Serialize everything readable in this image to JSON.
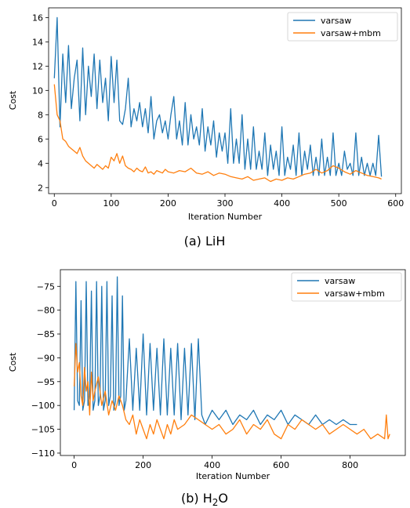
{
  "figure": {
    "captions": [
      {
        "prefix": "(a) LiH",
        "main": "",
        "sub": "",
        "tail": ""
      },
      {
        "prefix": "(b) ",
        "main": "H",
        "sub": "2",
        "tail": "O"
      }
    ],
    "colors": {
      "varsaw": "#1f77b4",
      "varsaw_mbm": "#ff7f0e"
    }
  },
  "chart_data": [
    {
      "type": "line",
      "caption": "(a) LiH",
      "xlabel": "Iteration Number",
      "ylabel": "Cost",
      "xlim": [
        -10,
        610
      ],
      "ylim": [
        1.5,
        16.8
      ],
      "xticks": [
        0,
        100,
        200,
        300,
        400,
        500,
        600
      ],
      "yticks": [
        2,
        4,
        6,
        8,
        10,
        12,
        14,
        16
      ],
      "legend": "top-right",
      "series": [
        {
          "name": "varsaw",
          "color": "#1f77b4",
          "x": [
            0,
            5,
            10,
            15,
            20,
            25,
            30,
            35,
            40,
            45,
            50,
            55,
            60,
            65,
            70,
            75,
            80,
            85,
            90,
            95,
            100,
            105,
            110,
            115,
            120,
            125,
            130,
            135,
            140,
            145,
            150,
            155,
            160,
            165,
            170,
            175,
            180,
            185,
            190,
            195,
            200,
            205,
            210,
            215,
            220,
            225,
            230,
            235,
            240,
            245,
            250,
            255,
            260,
            265,
            270,
            275,
            280,
            285,
            290,
            295,
            300,
            305,
            310,
            315,
            320,
            325,
            330,
            335,
            340,
            345,
            350,
            355,
            360,
            365,
            370,
            375,
            380,
            385,
            390,
            395,
            400,
            405,
            410,
            415,
            420,
            425,
            430,
            435,
            440,
            445,
            450,
            455,
            460,
            465,
            470,
            475,
            480,
            485,
            490,
            495,
            500,
            505,
            510,
            515,
            520,
            525,
            530,
            535,
            540,
            545,
            550,
            555,
            560,
            565,
            570,
            575
          ],
          "y": [
            11.0,
            16.0,
            7.0,
            13.0,
            9.0,
            13.7,
            8.5,
            11.0,
            12.5,
            7.5,
            13.5,
            8.0,
            12.0,
            9.5,
            13.0,
            8.5,
            12.5,
            9.0,
            11.0,
            7.5,
            12.8,
            9.0,
            12.5,
            7.5,
            7.2,
            8.5,
            11.0,
            7.0,
            8.5,
            7.5,
            9.0,
            7.0,
            8.5,
            6.5,
            9.5,
            6.0,
            7.5,
            8.0,
            6.5,
            7.5,
            6.0,
            8.0,
            9.5,
            6.0,
            7.5,
            5.5,
            9.0,
            5.5,
            8.0,
            6.0,
            7.0,
            5.5,
            8.5,
            5.0,
            7.0,
            5.5,
            7.5,
            4.5,
            6.5,
            5.0,
            6.5,
            4.0,
            8.5,
            4.0,
            6.0,
            4.0,
            8.0,
            3.5,
            6.0,
            3.5,
            7.0,
            3.5,
            5.0,
            3.5,
            6.5,
            3.0,
            5.5,
            3.5,
            5.0,
            3.0,
            7.0,
            3.0,
            4.5,
            3.5,
            5.5,
            3.0,
            6.5,
            3.0,
            5.0,
            3.5,
            5.5,
            3.0,
            4.5,
            3.0,
            6.0,
            3.0,
            4.5,
            3.0,
            6.5,
            3.0,
            4.0,
            3.0,
            5.0,
            3.5,
            4.0,
            3.0,
            6.5,
            3.0,
            4.5,
            3.0,
            4.0,
            3.0,
            4.0,
            3.0,
            6.3,
            2.9
          ]
        },
        {
          "name": "varsaw+mbm",
          "color": "#ff7f0e",
          "x": [
            0,
            5,
            10,
            15,
            20,
            25,
            30,
            35,
            40,
            45,
            50,
            55,
            60,
            65,
            70,
            75,
            80,
            85,
            90,
            95,
            100,
            105,
            110,
            115,
            120,
            125,
            130,
            135,
            140,
            145,
            150,
            155,
            160,
            165,
            170,
            175,
            180,
            185,
            190,
            195,
            200,
            210,
            220,
            230,
            240,
            250,
            260,
            270,
            280,
            290,
            300,
            310,
            320,
            330,
            340,
            350,
            360,
            370,
            380,
            390,
            400,
            410,
            420,
            430,
            440,
            450,
            460,
            470,
            480,
            490,
            500,
            510,
            520,
            530,
            540,
            550,
            560,
            570,
            575
          ],
          "y": [
            10.5,
            8.0,
            7.5,
            6.0,
            5.8,
            5.4,
            5.2,
            5.0,
            4.8,
            5.3,
            4.6,
            4.2,
            4.0,
            3.8,
            3.6,
            3.9,
            3.7,
            3.5,
            3.8,
            3.6,
            4.5,
            4.2,
            4.8,
            4.0,
            4.6,
            3.8,
            3.6,
            3.5,
            3.3,
            3.6,
            3.4,
            3.3,
            3.7,
            3.2,
            3.3,
            3.1,
            3.4,
            3.3,
            3.2,
            3.5,
            3.3,
            3.2,
            3.4,
            3.3,
            3.6,
            3.2,
            3.1,
            3.3,
            3.0,
            3.2,
            3.1,
            2.9,
            2.8,
            2.7,
            2.9,
            2.6,
            2.7,
            2.8,
            2.5,
            2.7,
            2.6,
            2.8,
            2.7,
            2.9,
            3.1,
            3.2,
            3.5,
            3.2,
            3.4,
            3.8,
            3.6,
            3.3,
            3.1,
            3.4,
            3.2,
            3.0,
            2.9,
            2.8,
            2.7
          ]
        }
      ]
    },
    {
      "type": "line",
      "caption": "(b) H2O",
      "xlabel": "Iteration Number",
      "ylabel": "Cost",
      "xlim": [
        -40,
        960
      ],
      "ylim": [
        -110.5,
        -71.5
      ],
      "xticks": [
        0,
        200,
        400,
        600,
        800
      ],
      "yticks": [
        -75,
        -80,
        -85,
        -90,
        -95,
        -100,
        -105,
        -110
      ],
      "legend": "top-right",
      "series": [
        {
          "name": "varsaw",
          "color": "#1f77b4",
          "x": [
            0,
            5,
            10,
            15,
            20,
            25,
            30,
            35,
            40,
            45,
            50,
            55,
            60,
            65,
            70,
            75,
            80,
            85,
            90,
            95,
            100,
            105,
            110,
            115,
            120,
            125,
            130,
            135,
            140,
            145,
            150,
            160,
            170,
            180,
            190,
            200,
            210,
            220,
            230,
            240,
            250,
            260,
            270,
            280,
            290,
            300,
            310,
            320,
            330,
            340,
            350,
            360,
            370,
            380,
            400,
            420,
            440,
            460,
            480,
            500,
            520,
            540,
            560,
            580,
            600,
            620,
            640,
            660,
            680,
            700,
            720,
            740,
            760,
            780,
            800,
            820
          ],
          "y": [
            -101,
            -74,
            -99,
            -100,
            -78,
            -101,
            -99,
            -74,
            -100,
            -98,
            -76,
            -101,
            -99,
            -74,
            -100,
            -98,
            -75,
            -101,
            -99,
            -74,
            -100,
            -98,
            -77,
            -101,
            -99,
            -73,
            -100,
            -98,
            -77,
            -101,
            -99,
            -86,
            -101,
            -88,
            -101,
            -85,
            -102,
            -87,
            -101,
            -88,
            -102,
            -86,
            -102,
            -88,
            -102,
            -87,
            -103,
            -88,
            -102,
            -87,
            -103,
            -86,
            -102,
            -104,
            -101,
            -103,
            -101,
            -104,
            -102,
            -103,
            -101,
            -104,
            -102,
            -103,
            -101,
            -104,
            -102,
            -103,
            -104,
            -102,
            -104,
            -103,
            -104,
            -103,
            -104,
            -104
          ]
        },
        {
          "name": "varsaw+mbm",
          "color": "#ff7f0e",
          "x": [
            0,
            5,
            10,
            15,
            20,
            25,
            30,
            35,
            40,
            45,
            50,
            55,
            60,
            70,
            80,
            90,
            100,
            110,
            120,
            130,
            140,
            150,
            160,
            170,
            180,
            190,
            200,
            210,
            220,
            230,
            240,
            250,
            260,
            270,
            280,
            290,
            300,
            320,
            340,
            360,
            380,
            400,
            420,
            440,
            460,
            480,
            500,
            520,
            540,
            560,
            580,
            600,
            620,
            640,
            660,
            680,
            700,
            720,
            740,
            760,
            780,
            800,
            820,
            840,
            860,
            880,
            900,
            905,
            910,
            915
          ],
          "y": [
            -96,
            -87,
            -93,
            -91,
            -98,
            -100,
            -92,
            -97,
            -95,
            -102,
            -93,
            -99,
            -97,
            -94,
            -100,
            -97,
            -102,
            -99,
            -101,
            -98,
            -100,
            -103,
            -104,
            -102,
            -106,
            -103,
            -105,
            -107,
            -104,
            -106,
            -103,
            -105,
            -107,
            -104,
            -106,
            -103,
            -105,
            -104,
            -102,
            -103,
            -104,
            -105,
            -104,
            -106,
            -105,
            -103,
            -106,
            -104,
            -105,
            -103,
            -106,
            -107,
            -104,
            -105,
            -103,
            -104,
            -105,
            -104,
            -106,
            -105,
            -104,
            -105,
            -106,
            -105,
            -107,
            -106,
            -107,
            -102,
            -107,
            -106
          ]
        }
      ]
    }
  ]
}
